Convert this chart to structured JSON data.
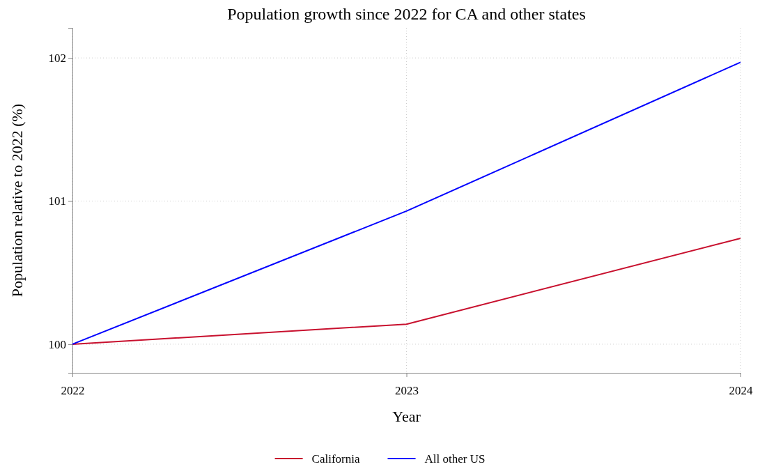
{
  "chart_data": {
    "type": "line",
    "title": "Population growth since 2022 for CA and other states",
    "xlabel": "Year",
    "ylabel": "Population relative to 2022 (%)",
    "x": [
      2022,
      2023,
      2024
    ],
    "series": [
      {
        "name": "California",
        "color": "#c8102e",
        "values": [
          100,
          100.14,
          100.74
        ]
      },
      {
        "name": "All other US",
        "color": "#0000ff",
        "values": [
          100,
          100.93,
          101.97
        ]
      }
    ],
    "xlim": [
      2022,
      2024
    ],
    "xticks": [
      2022,
      2023,
      2024
    ],
    "ylim": [
      99.8,
      102.21
    ],
    "yticks": [
      100,
      101,
      102
    ],
    "grid": true,
    "legend": "bottom",
    "line_style": "solid",
    "marker": "none"
  }
}
